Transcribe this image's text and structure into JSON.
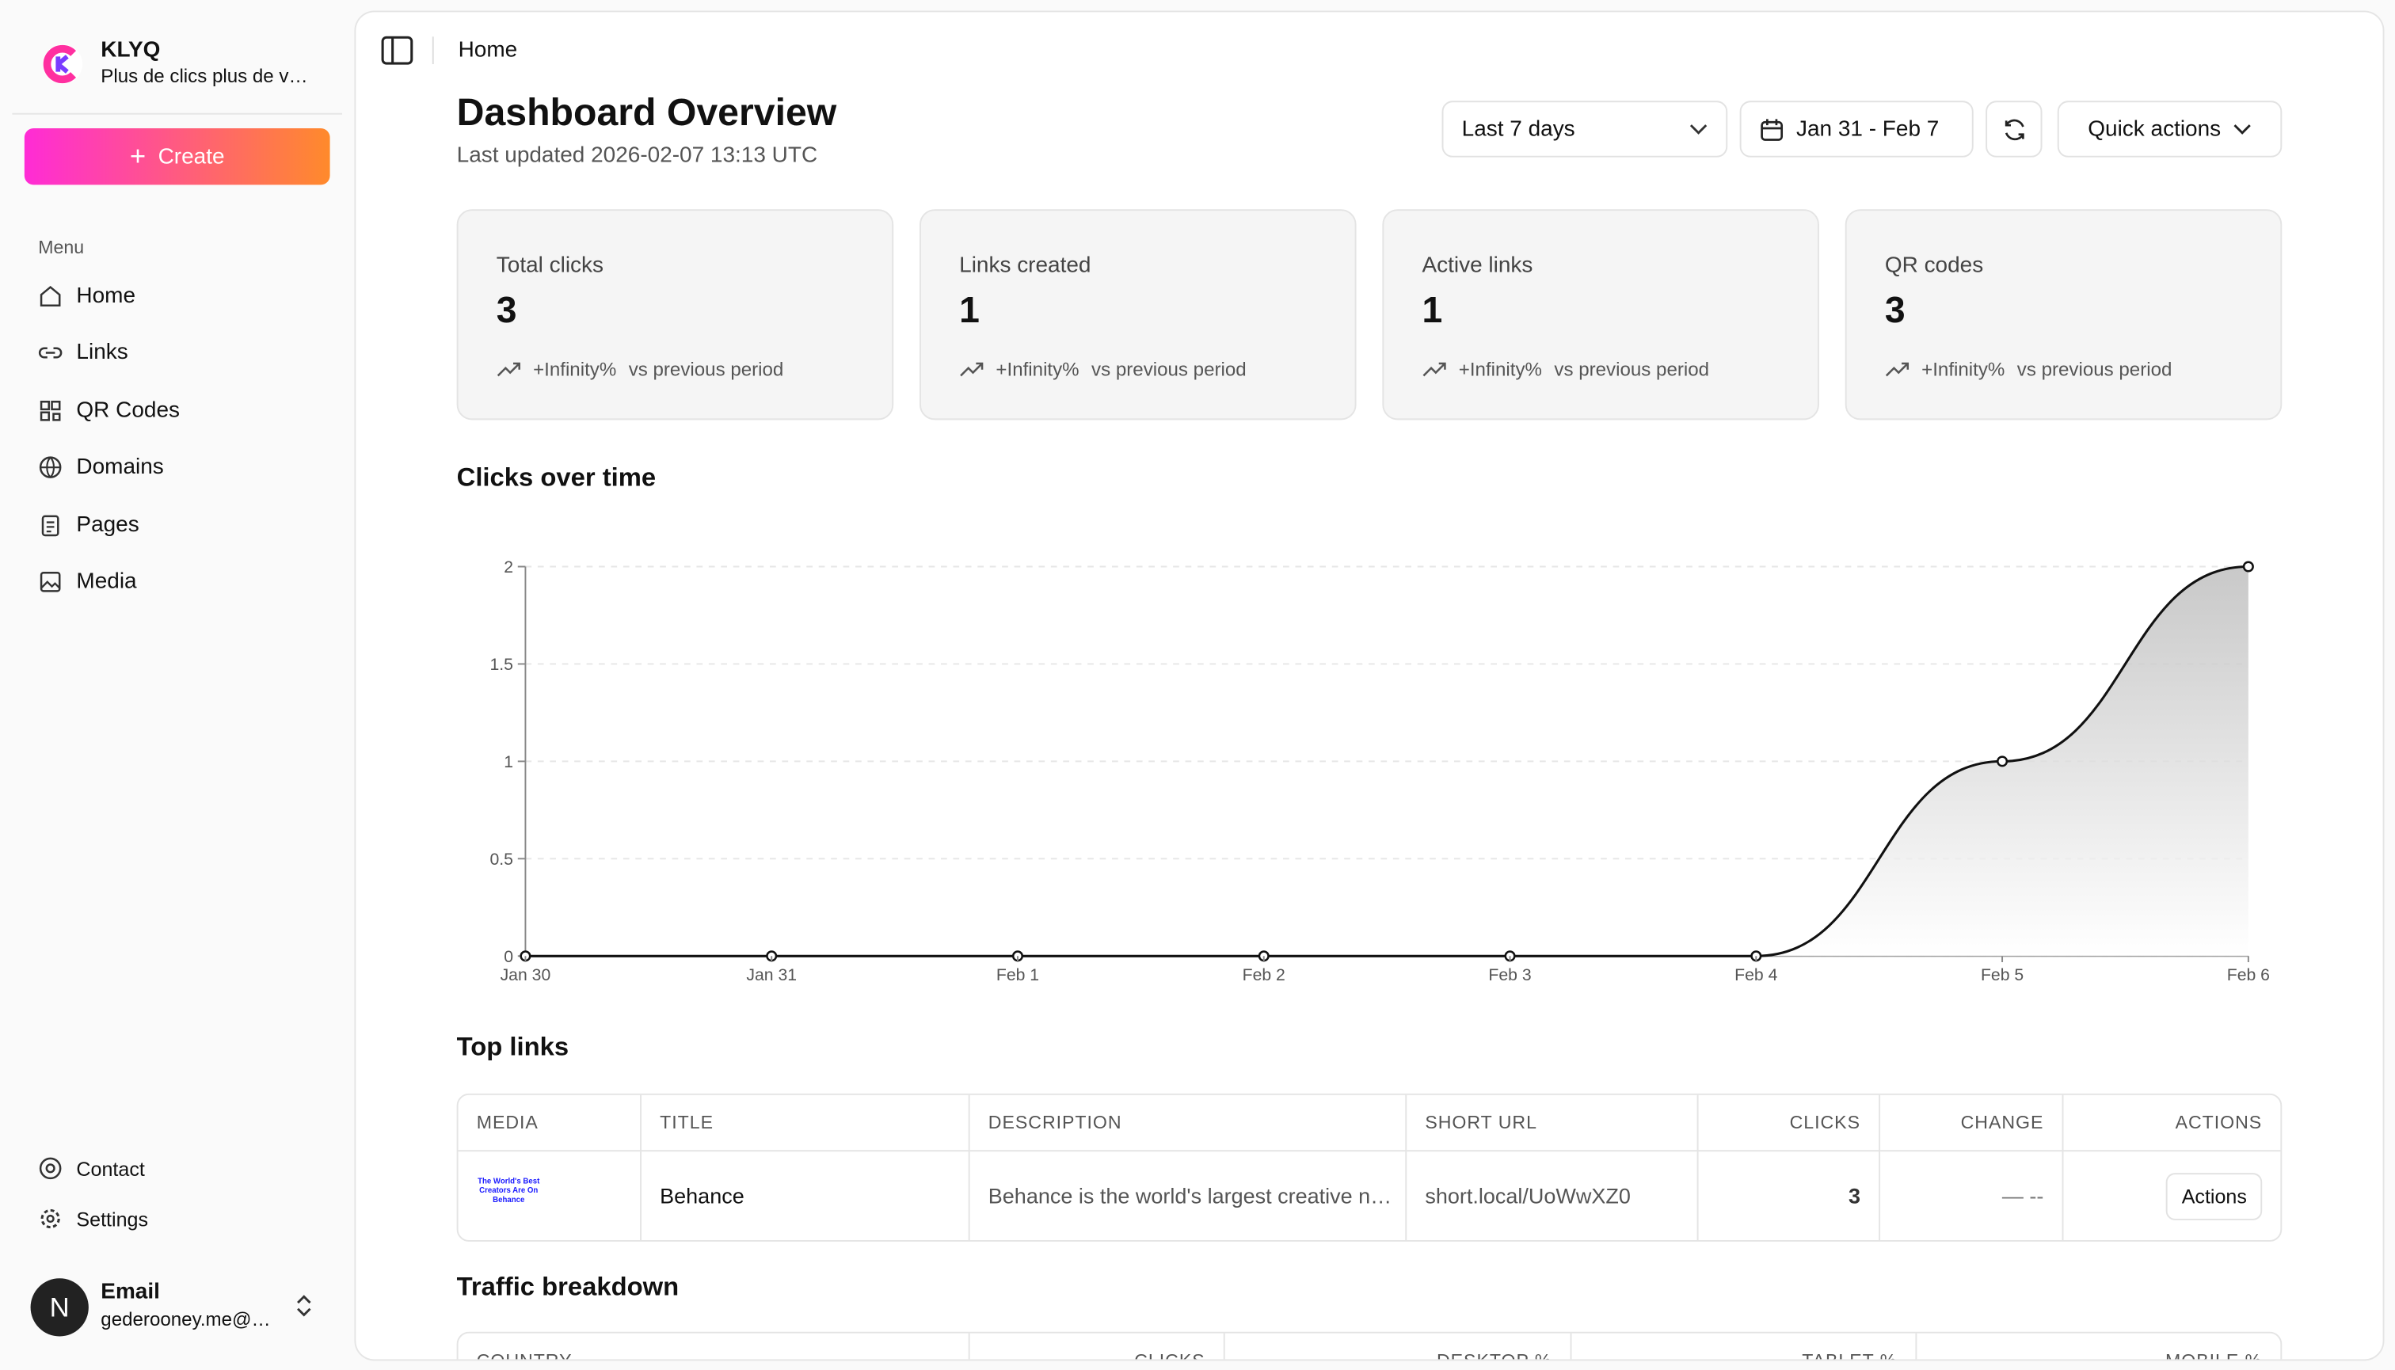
{
  "sidebar": {
    "brand": "KLYQ",
    "tagline": "Plus de clics plus de v…",
    "create": "Create",
    "menu_label": "Menu",
    "menu": [
      "Home",
      "Links",
      "QR Codes",
      "Domains",
      "Pages",
      "Media"
    ],
    "footer": [
      "Contact",
      "Settings"
    ],
    "user": {
      "name": "Email",
      "email": "gederooney.me@…"
    }
  },
  "header": {
    "breadcrumb": "Home",
    "title": "Dashboard Overview",
    "updated": "Last updated 2026-02-07 13:13 UTC",
    "period": "Last 7 days",
    "range": "Jan 31 - Feb 7",
    "quick_actions": "Quick actions"
  },
  "stats": [
    {
      "label": "Total clicks",
      "value": 3,
      "change": "+Infinity%",
      "note": "vs previous period"
    },
    {
      "label": "Links created",
      "value": 1,
      "change": "+Infinity%",
      "note": "vs previous period"
    },
    {
      "label": "Active links",
      "value": 1,
      "change": "+Infinity%",
      "note": "vs previous period"
    },
    {
      "label": "QR codes",
      "value": 3,
      "change": "+Infinity%",
      "note": "vs previous period"
    }
  ],
  "chart_data": {
    "type": "line",
    "title": "Clicks over time",
    "categories": [
      "Jan 30",
      "Jan 31",
      "Feb 1",
      "Feb 2",
      "Feb 3",
      "Feb 4",
      "Feb 5",
      "Feb 6"
    ],
    "values": [
      0,
      0,
      0,
      0,
      0,
      0,
      1,
      2
    ],
    "color": "#111111",
    "ylim": [
      0,
      2
    ],
    "yticks": [
      0,
      0.5,
      1,
      1.5,
      2
    ],
    "grid": true
  },
  "top_links": {
    "title": "Top links",
    "headers": [
      "MEDIA",
      "TITLE",
      "DESCRIPTION",
      "SHORT URL",
      "CLICKS",
      "CHANGE",
      "ACTIONS"
    ],
    "rows": [
      {
        "media": "The World's Best Creators Are On Behance",
        "title": "Behance",
        "description": "Behance is the world's largest creative n…",
        "short_url": "short.local/UoWwXZ0",
        "clicks": 3,
        "change": "— --",
        "action": "Actions"
      }
    ]
  },
  "traffic": {
    "title": "Traffic breakdown",
    "headers": [
      "COUNTRY",
      "CLICKS",
      "DESKTOP %",
      "TABLET %",
      "MOBILE %"
    ]
  }
}
